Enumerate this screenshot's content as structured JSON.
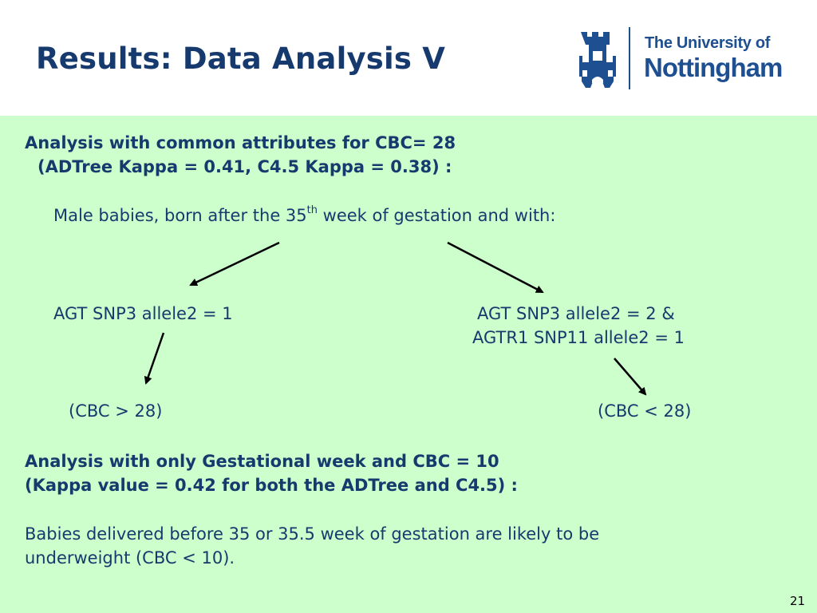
{
  "slide": {
    "title": "Results: Data Analysis V",
    "page_number": "21"
  },
  "logo": {
    "line1": "The University of",
    "line2": "Nottingham"
  },
  "section1": {
    "heading_line1": "Analysis with common attributes for  CBC= 28",
    "heading_line2": "(ADTree Kappa = 0.41, C4.5 Kappa = 0.38) :",
    "intro_before_sup": "Male babies, born after the 35",
    "intro_sup": "th",
    "intro_after_sup": " week of gestation and with:",
    "left_branch": "AGT SNP3 allele2 = 1",
    "right_branch_line1": "AGT SNP3 allele2 = 2  &",
    "right_branch_line2": "AGTR1 SNP11 allele2 = 1",
    "left_result": "(CBC > 28)",
    "right_result": "(CBC < 28)"
  },
  "section2": {
    "heading_line1": "Analysis with only Gestational week and CBC = 10",
    "heading_line2": "(Kappa value = 0.42 for both the ADTree and C4.5) :",
    "body_line1": "Babies delivered before 35 or 35.5 week of gestation are likely to be",
    "body_line2": "underweight (CBC < 10)."
  },
  "colors": {
    "title_text": "#173a6e",
    "content_background": "#ccffcc",
    "logo_blue": "#1d4f91"
  }
}
